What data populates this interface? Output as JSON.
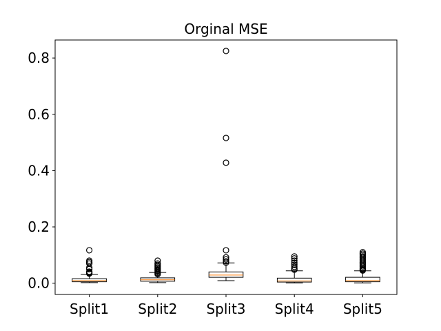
{
  "chart_data": {
    "type": "box",
    "title": "Orginal MSE",
    "xlabel": "",
    "ylabel": "",
    "ylim": [
      -0.04,
      0.864
    ],
    "yticks": [
      0.0,
      0.2,
      0.4,
      0.6,
      0.8
    ],
    "ytick_labels": [
      "0.0",
      "0.2",
      "0.4",
      "0.6",
      "0.8"
    ],
    "grid": false,
    "categories": [
      "Split1",
      "Split2",
      "Split3",
      "Split4",
      "Split5"
    ],
    "boxes": [
      {
        "name": "Split1",
        "whislo": 0.002,
        "q1": 0.005,
        "med": 0.009,
        "q3": 0.016,
        "whishi": 0.031,
        "fliers": [
          0.034,
          0.036,
          0.038,
          0.041,
          0.05,
          0.055,
          0.07,
          0.075,
          0.08,
          0.117
        ]
      },
      {
        "name": "Split2",
        "whislo": 0.002,
        "q1": 0.007,
        "med": 0.012,
        "q3": 0.019,
        "whishi": 0.038,
        "fliers": [
          0.032,
          0.036,
          0.04,
          0.044,
          0.048,
          0.052,
          0.056,
          0.06,
          0.065,
          0.07,
          0.08
        ]
      },
      {
        "name": "Split3",
        "whislo": 0.009,
        "q1": 0.021,
        "med": 0.029,
        "q3": 0.04,
        "whishi": 0.072,
        "fliers": [
          0.073,
          0.078,
          0.085,
          0.092,
          0.117,
          0.428,
          0.516,
          0.825
        ]
      },
      {
        "name": "Split4",
        "whislo": 0.001,
        "q1": 0.004,
        "med": 0.008,
        "q3": 0.018,
        "whishi": 0.044,
        "fliers": [
          0.048,
          0.052,
          0.058,
          0.065,
          0.072,
          0.08,
          0.088,
          0.095
        ]
      },
      {
        "name": "Split5",
        "whislo": 0.001,
        "q1": 0.005,
        "med": 0.009,
        "q3": 0.021,
        "whishi": 0.044,
        "fliers": [
          0.045,
          0.048,
          0.051,
          0.055,
          0.06,
          0.065,
          0.07,
          0.075,
          0.08,
          0.085,
          0.09,
          0.095,
          0.1,
          0.105,
          0.11
        ]
      }
    ],
    "colors": {
      "median": "#ff7f0e",
      "box": "#000000",
      "axes": "#000000",
      "background": "#ffffff"
    }
  }
}
